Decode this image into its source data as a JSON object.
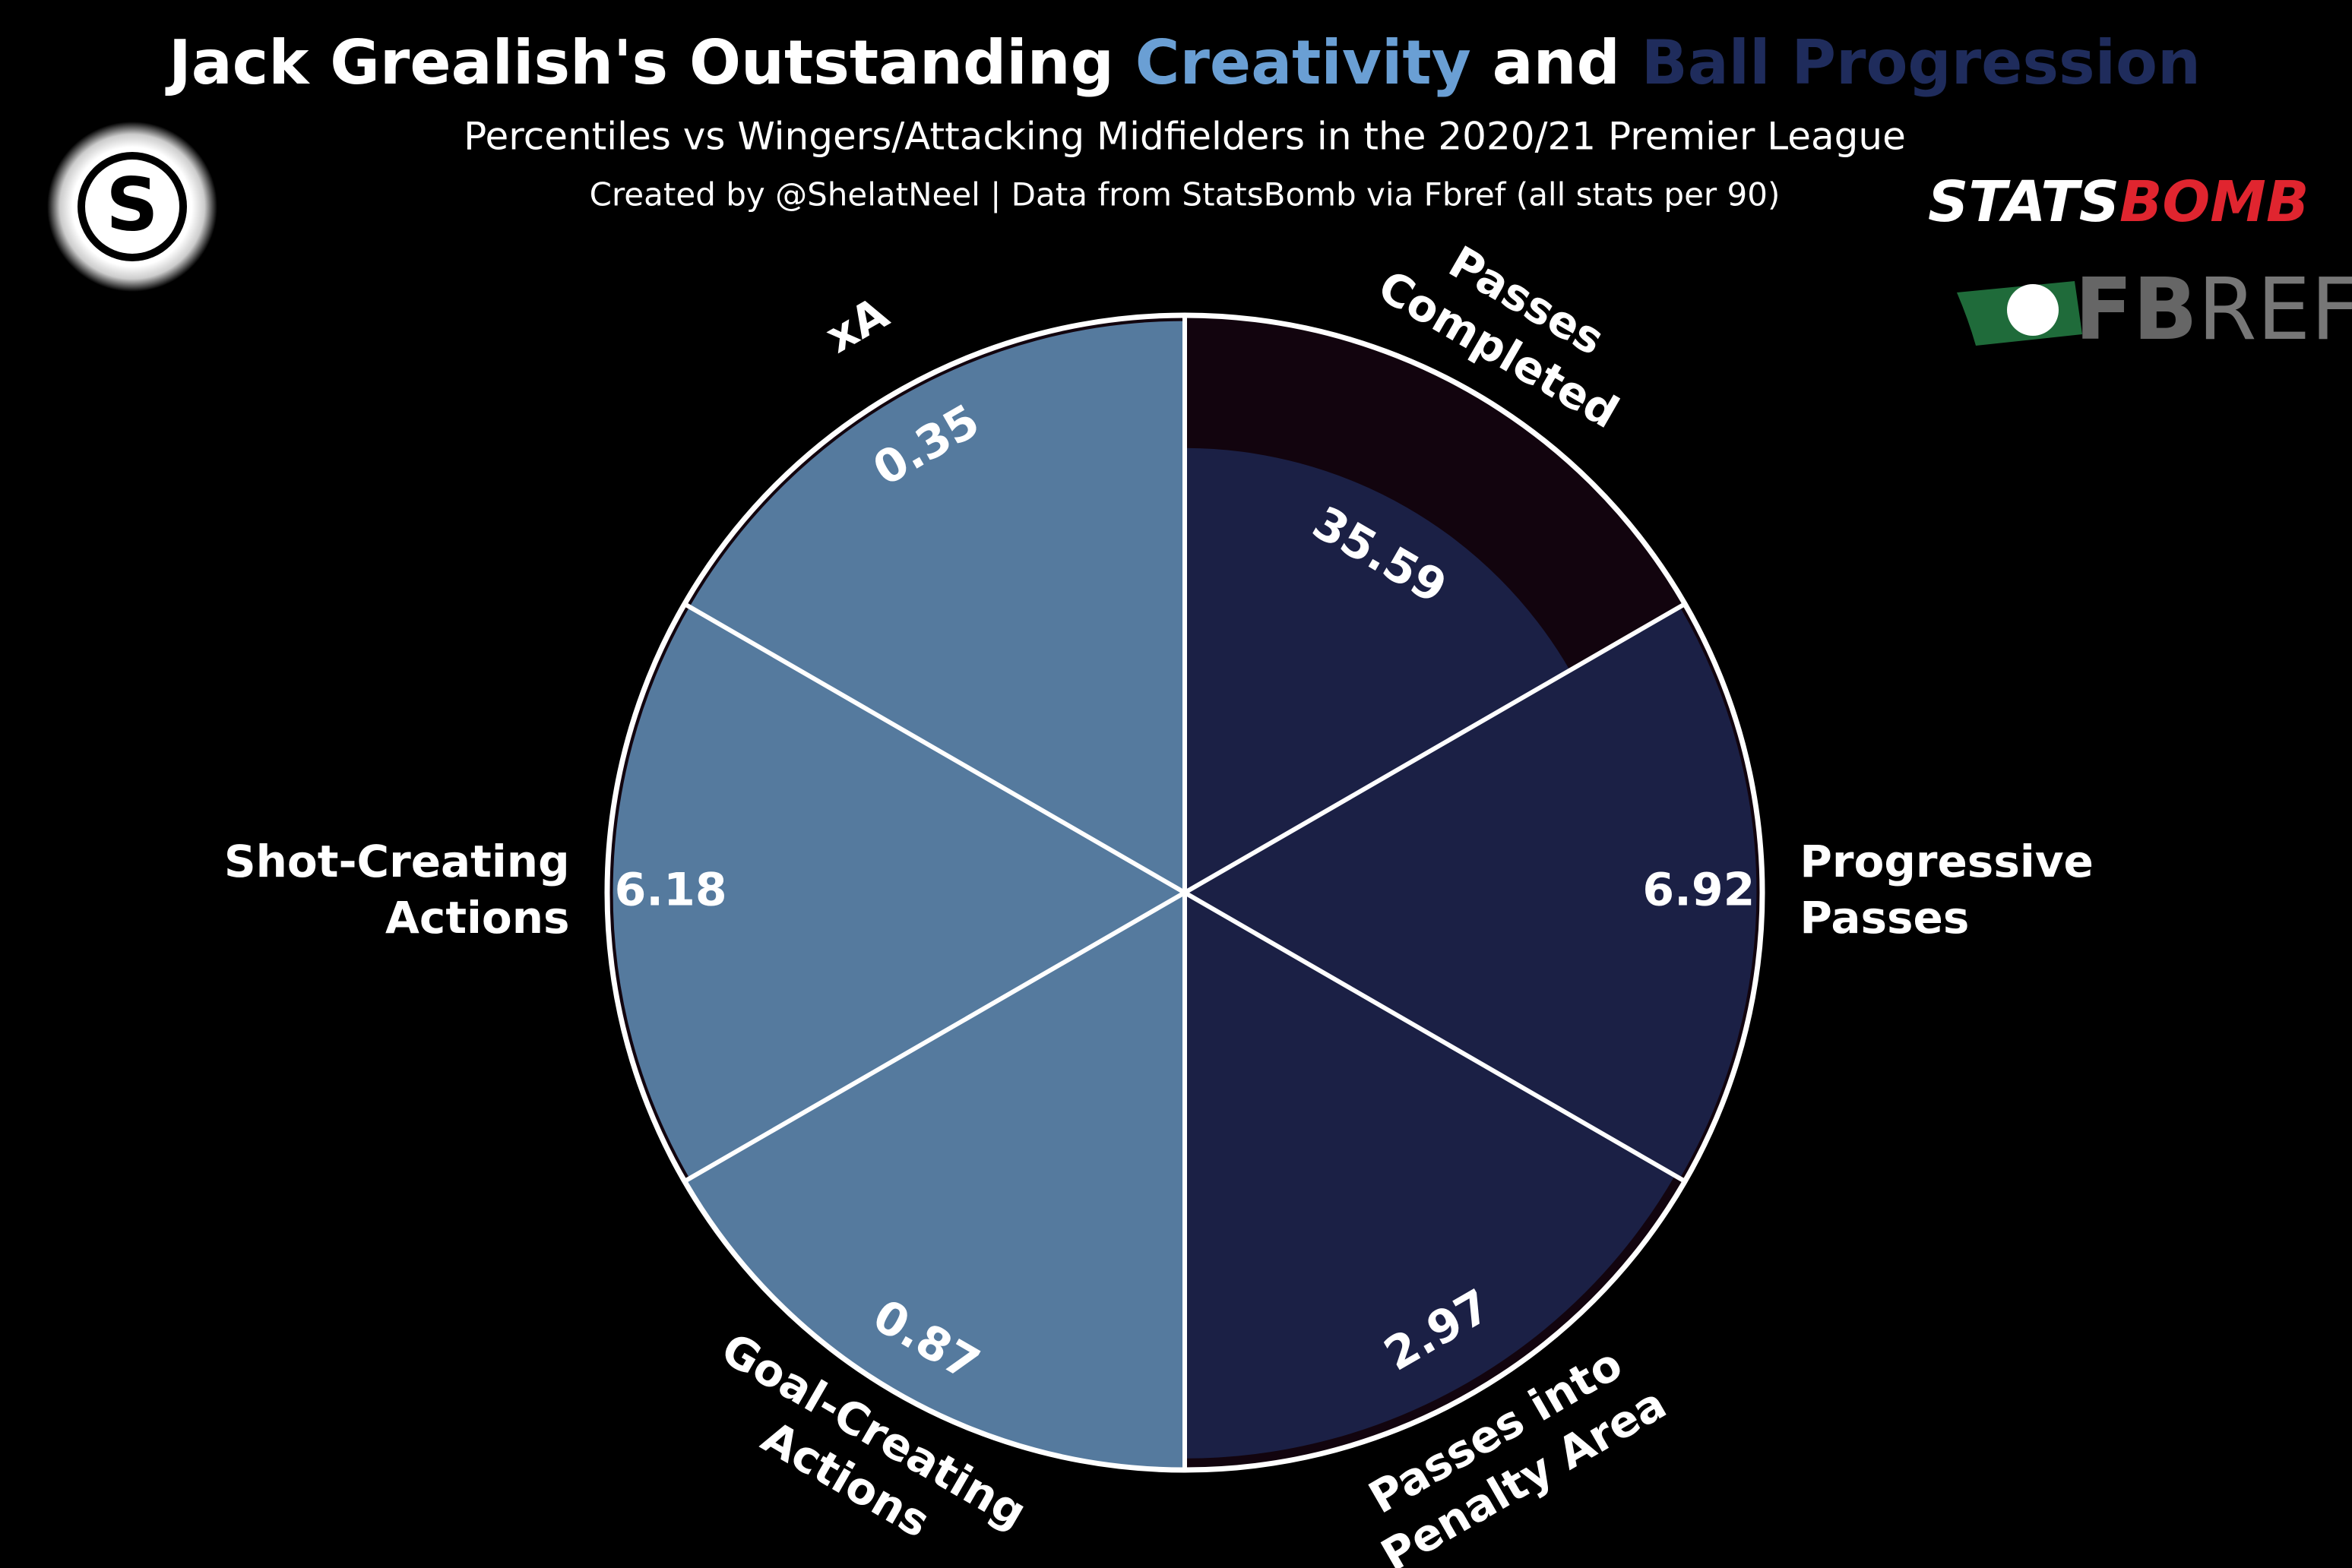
{
  "chart_data": {
    "type": "pizza",
    "title_parts": [
      "Jack Grealish's Outstanding",
      "and"
    ],
    "subtitle": "Percentiles vs Wingers/Attacking Midfielders in the 2020/21 Premier League",
    "credit": "Created by @ShelatNeel | Data from StatsBomb via Fbref (all stats per 90)",
    "rlim": [
      0,
      100
    ],
    "background_color": "#12040e",
    "series": [
      {
        "name": "Creativity",
        "color": "#557a9e",
        "title_color": "#6a9fd4",
        "categories": [
          "xA",
          "Shot-Creating Actions",
          "Goal-Creating Actions"
        ],
        "values": [
          99,
          99,
          100
        ],
        "stats": [
          0.35,
          6.18,
          0.87
        ]
      },
      {
        "name": "Ball Progression",
        "color": "#1b2045",
        "title_color": "#1f2c5c",
        "categories": [
          "Passes into Penalty Area",
          "Progressive Passes",
          "Passes Completed"
        ],
        "values": [
          98,
          99,
          77
        ],
        "stats": [
          2.97,
          6.92,
          35.59
        ]
      }
    ]
  },
  "logos": {
    "badge": "S",
    "statsbomb": [
      "STATS",
      "BOMB"
    ],
    "fbref": [
      "FB",
      "REF"
    ]
  }
}
